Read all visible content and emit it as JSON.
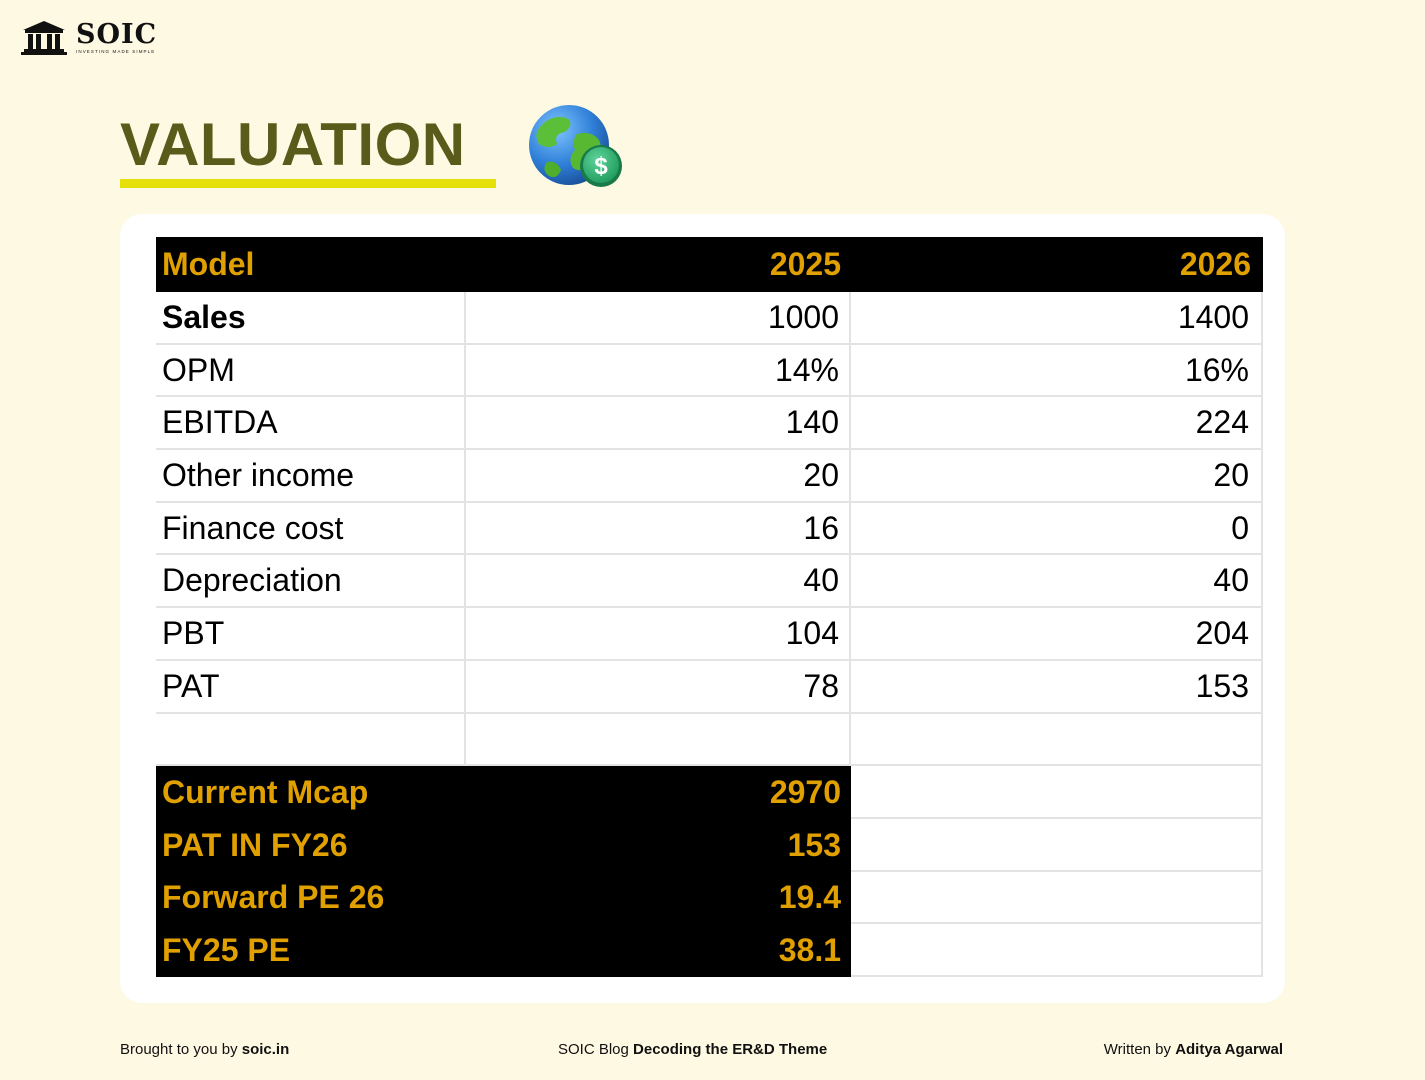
{
  "brand": {
    "name": "SOIC",
    "tagline": "INVESTING MADE SIMPLE"
  },
  "page": {
    "title": "VALUATION",
    "accent_color": "#e5e00a",
    "title_color": "#5a5a1a",
    "header_text_color": "#e0a000"
  },
  "table": {
    "headers": [
      "Model",
      "2025",
      "2026"
    ],
    "rows": [
      {
        "label": "Sales",
        "y2025": "1000",
        "y2026": "1400"
      },
      {
        "label": "OPM",
        "y2025": "14%",
        "y2026": "16%"
      },
      {
        "label": "EBITDA",
        "y2025": "140",
        "y2026": "224"
      },
      {
        "label": "Other income",
        "y2025": "20",
        "y2026": "20"
      },
      {
        "label": "Finance cost",
        "y2025": "16",
        "y2026": "0"
      },
      {
        "label": "Depreciation",
        "y2025": "40",
        "y2026": "40"
      },
      {
        "label": "PBT",
        "y2025": "104",
        "y2026": "204"
      },
      {
        "label": "PAT",
        "y2025": "78",
        "y2026": "153"
      },
      {
        "label": "",
        "y2025": "",
        "y2026": ""
      }
    ],
    "summary": [
      {
        "label": "Current Mcap",
        "value": "2970"
      },
      {
        "label": "PAT IN FY26",
        "value": "153"
      },
      {
        "label": "Forward PE 26",
        "value": "19.4"
      },
      {
        "label": "FY25 PE",
        "value": "38.1"
      }
    ]
  },
  "footer": {
    "left_prefix": "Brought to you by ",
    "left_bold": "soic.in",
    "mid_prefix": "SOIC Blog ",
    "mid_bold": "Decoding the ER&D Theme",
    "right_prefix": "Written by ",
    "right_bold": "Aditya Agarwal"
  }
}
